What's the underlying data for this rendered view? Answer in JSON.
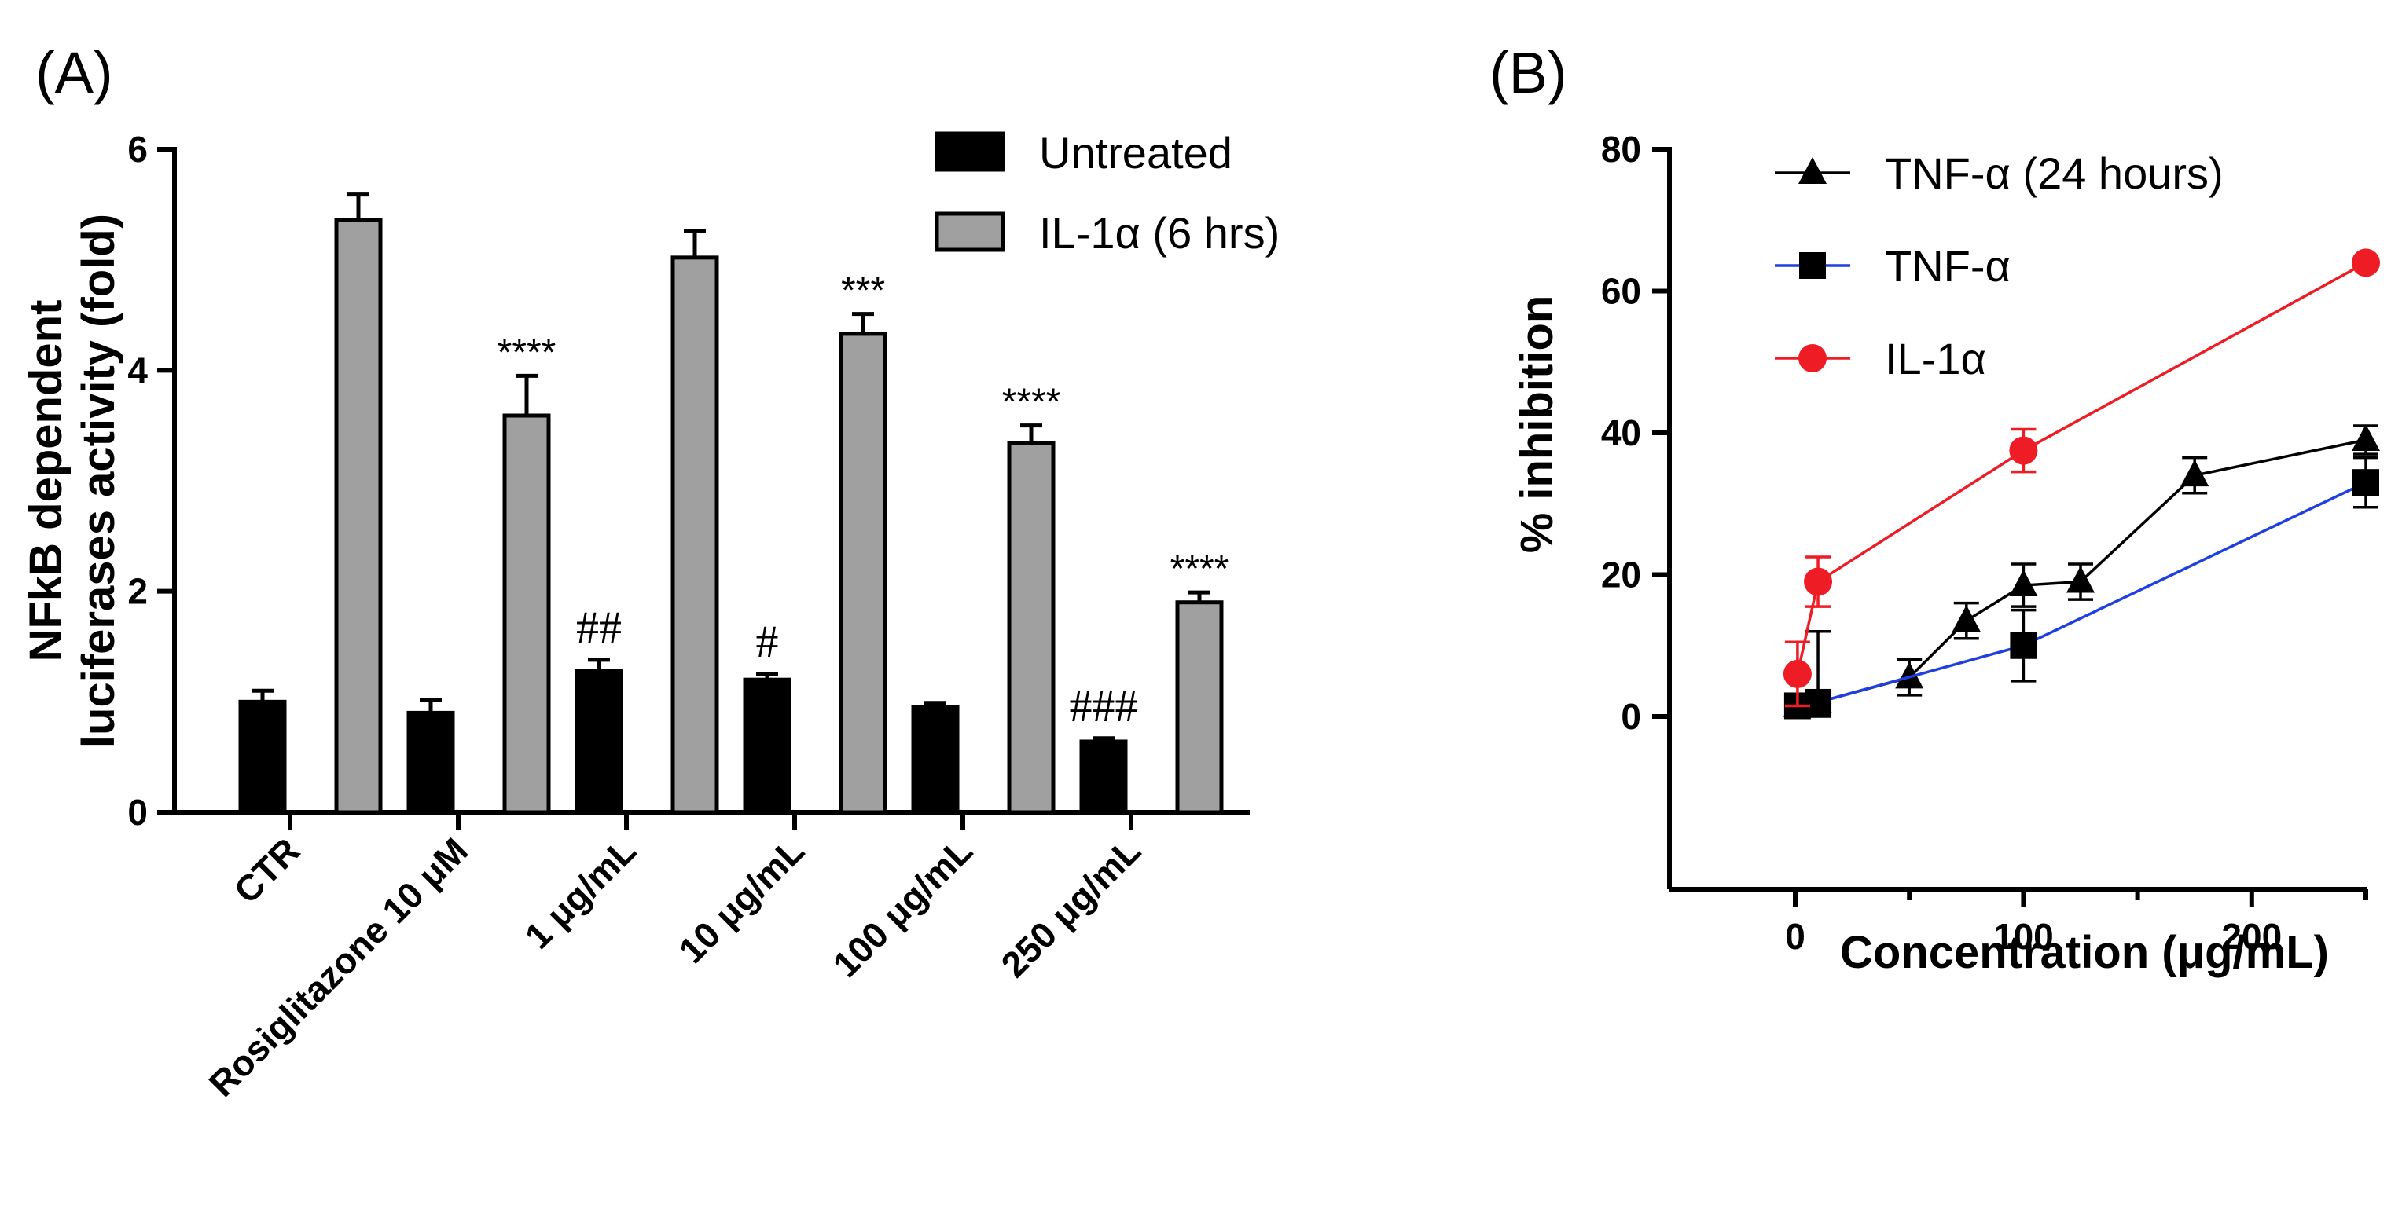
{
  "chart_data": [
    {
      "panel_label": "(A)",
      "type": "bar",
      "ylabel_lines": [
        "NFkB dependent",
        "luciferases activity (fold)"
      ],
      "ylim": [
        0,
        6
      ],
      "yticks": [
        "0",
        "2",
        "4",
        "6"
      ],
      "categories": [
        "CTR",
        "Rosiglitazone 10 μM",
        "1 μg/mL",
        "10 μg/mL",
        "100 μg/mL",
        "250 μg/mL"
      ],
      "legend_position": "top-right",
      "series": [
        {
          "name": "Untreated",
          "color": "#000000",
          "values": [
            1.0,
            0.9,
            1.28,
            1.2,
            0.95,
            0.64
          ],
          "errors": [
            0.1,
            0.12,
            0.1,
            0.05,
            0.04,
            0.03
          ],
          "annotations": [
            "",
            "",
            "##",
            "#",
            "",
            "###"
          ]
        },
        {
          "name": "IL-1α (6 hrs)",
          "color": "#a0a0a0",
          "values": [
            5.36,
            3.59,
            5.02,
            4.33,
            3.34,
            1.9
          ],
          "errors": [
            0.23,
            0.36,
            0.24,
            0.18,
            0.16,
            0.09
          ],
          "annotations": [
            "",
            "****",
            "",
            "***",
            "****",
            "****"
          ]
        }
      ]
    },
    {
      "panel_label": "(B)",
      "type": "line",
      "xlabel": "Concentration (μg/mL)",
      "ylabel": "% inhibition",
      "xlim": [
        0,
        250
      ],
      "ylim": [
        0,
        80
      ],
      "xticks": [
        "0",
        "100",
        "200"
      ],
      "yticks": [
        "0",
        "20",
        "40",
        "60",
        "80"
      ],
      "legend_position": "top-left",
      "series": [
        {
          "name": "TNF-α  (24 hours)",
          "color": "#000000",
          "line_color": "#000000",
          "marker": "triangle",
          "x": [
            1,
            10,
            50,
            75,
            100,
            125,
            175,
            250
          ],
          "y": [
            1.5,
            2.0,
            5.5,
            13.5,
            18.5,
            19.0,
            34.0,
            39.0
          ],
          "errors": [
            0.5,
            10.0,
            2.5,
            2.5,
            3.0,
            2.5,
            2.5,
            2.0
          ]
        },
        {
          "name": "TNF-α",
          "color": "#000000",
          "line_color": "#1f3fe0",
          "marker": "square",
          "x": [
            1,
            10,
            100,
            250
          ],
          "y": [
            1.5,
            2.0,
            10.0,
            33.0
          ],
          "errors": [
            0.5,
            1.0,
            5.0,
            3.5
          ]
        },
        {
          "name": "IL-1α",
          "color": "#ee1c24",
          "line_color": "#ee1c24",
          "marker": "circle",
          "x": [
            1,
            10,
            100,
            250
          ],
          "y": [
            6.0,
            19.0,
            37.5,
            64.0
          ],
          "errors": [
            4.5,
            3.5,
            3.0,
            0.8
          ]
        }
      ]
    }
  ]
}
